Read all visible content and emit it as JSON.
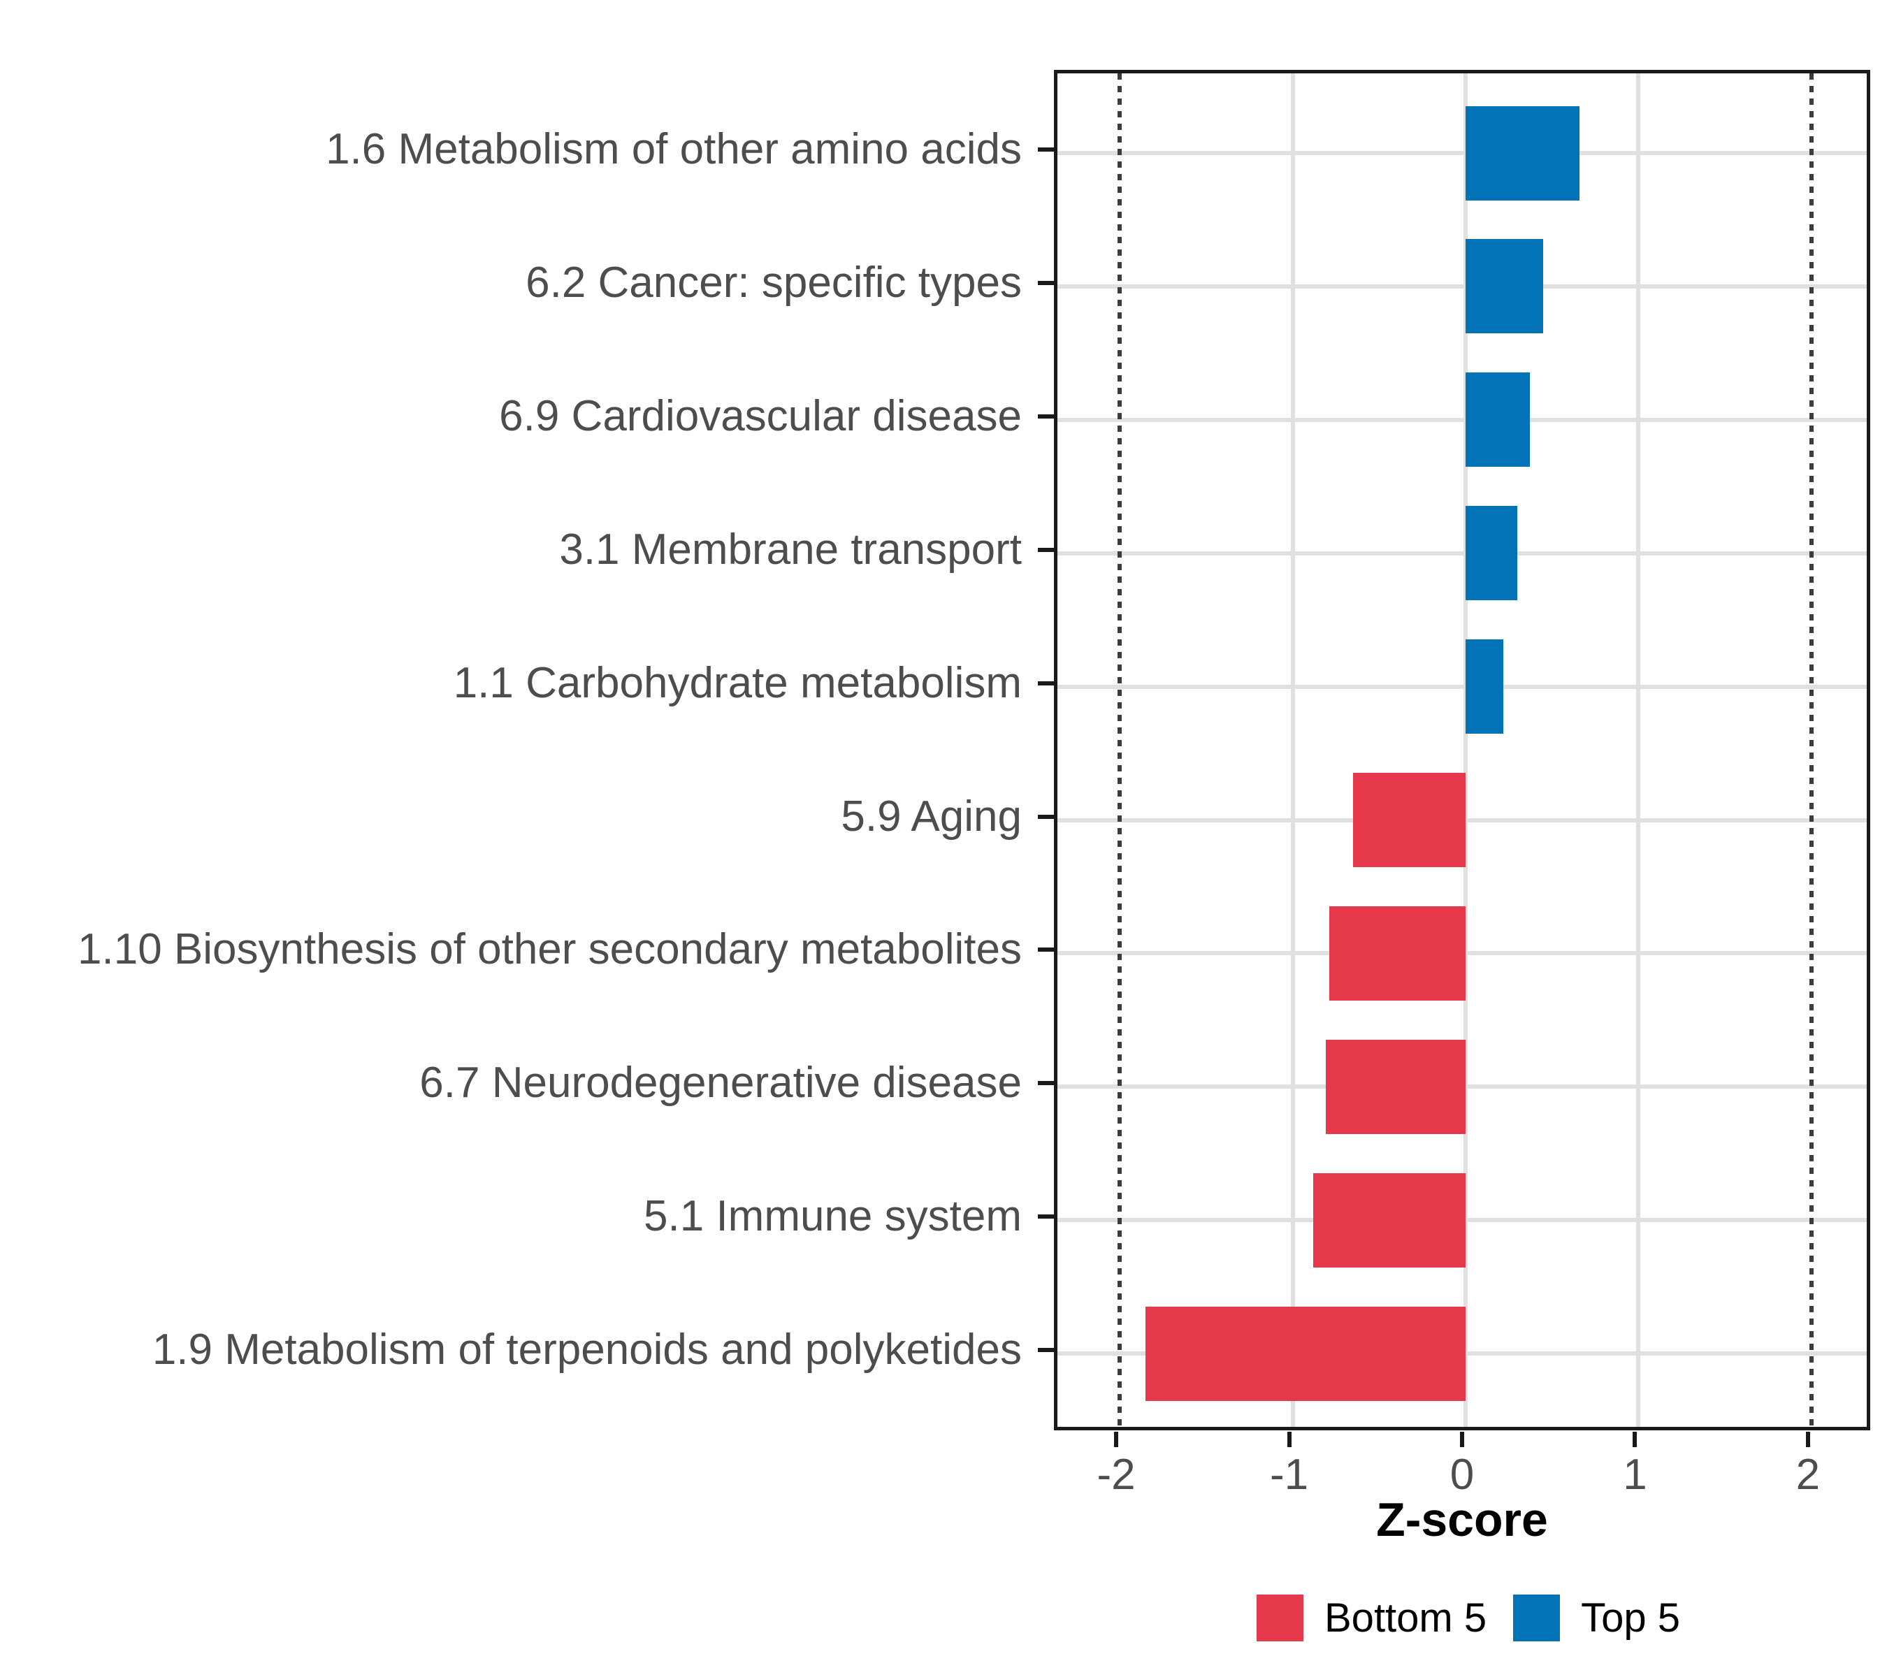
{
  "chart_data": {
    "type": "bar",
    "orientation": "horizontal",
    "title": "",
    "xlabel": "Z-score",
    "ylabel": "",
    "categories": [
      "1.6 Metabolism of other amino acids",
      "6.2 Cancer: specific types",
      "6.9 Cardiovascular disease",
      "3.1 Membrane transport",
      "1.1 Carbohydrate metabolism",
      "5.9 Aging",
      "1.10 Biosynthesis of other secondary metabolites",
      "6.7 Neurodegenerative disease",
      "5.1 Immune system",
      "1.9 Metabolism of terpenoids and polyketides"
    ],
    "values": [
      0.66,
      0.45,
      0.37,
      0.3,
      0.22,
      -0.65,
      -0.79,
      -0.81,
      -0.88,
      -1.85
    ],
    "bar_groups": [
      "Top 5",
      "Top 5",
      "Top 5",
      "Top 5",
      "Top 5",
      "Bottom 5",
      "Bottom 5",
      "Bottom 5",
      "Bottom 5",
      "Bottom 5"
    ],
    "group_colors": {
      "Bottom 5": "#E5394B",
      "Top 5": "#0273B6"
    },
    "xlim": [
      -2.36,
      2.36
    ],
    "x_ticks": [
      -2,
      -1,
      0,
      1,
      2
    ],
    "x_gridlines": [
      -1,
      0,
      1
    ],
    "reference_lines": {
      "values": [
        -2,
        2
      ],
      "style": "dotted",
      "color": "#3C3C3C"
    },
    "grid": true,
    "gridline_color": "#E0E0E0",
    "axis_text_color": "#4D4D4D",
    "legend_position": "bottom",
    "legend": {
      "entries": [
        {
          "label": "Bottom 5",
          "color": "#E5394B"
        },
        {
          "label": "Top 5",
          "color": "#0273B6"
        }
      ]
    }
  }
}
